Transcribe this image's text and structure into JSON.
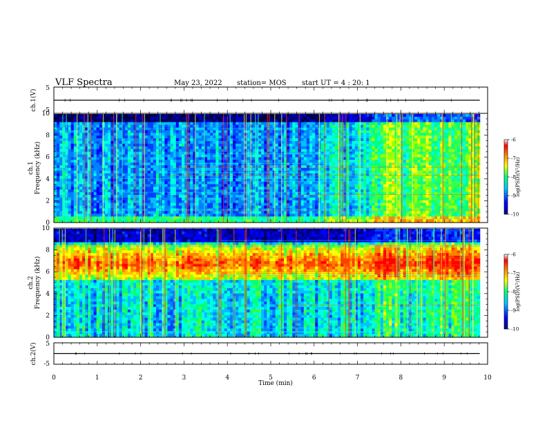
{
  "header": {
    "title": "VLF Spectra",
    "date": "May 23, 2022",
    "station": "station= MOS",
    "start": "start  UT  =   4 : 20: 1"
  },
  "colors": {
    "background": "#ffffff",
    "axis": "#000000",
    "trace": "#000000",
    "colormap": [
      "#000080",
      "#0000ff",
      "#00c8ff",
      "#00ff80",
      "#ffff00",
      "#ff8000",
      "#ff0000",
      "#ffffff"
    ]
  },
  "chart_data": [
    {
      "type": "line",
      "panel": "ch1-waveform",
      "ylabel": "ch.1(V)",
      "ylim": [
        -5,
        5
      ],
      "yticks": [
        "5",
        "-5"
      ],
      "xlim": [
        0,
        10
      ],
      "series": [
        {
          "x": [
            0,
            9.82
          ],
          "y": [
            0,
            0
          ]
        }
      ]
    },
    {
      "type": "heatmap",
      "panel": "ch1-spectrogram",
      "ylabel": "ch.1\nFrequency (kHz)",
      "ylim": [
        0,
        10
      ],
      "yticks": [
        "0",
        "2",
        "4",
        "6",
        "8",
        "10"
      ],
      "xlim": [
        0,
        10
      ],
      "data_x_extent": [
        0,
        9.82
      ],
      "colorbar": {
        "label": "log(PSD)(V²/Hz)",
        "range": [
          -10,
          -6
        ],
        "ticks": [
          "-6",
          "-7",
          "-8",
          "-9",
          "-10"
        ]
      }
    },
    {
      "type": "heatmap",
      "panel": "ch2-spectrogram",
      "ylabel": "ch.2\nFrequency (kHz)",
      "ylim": [
        0,
        10
      ],
      "yticks": [
        "0",
        "2",
        "4",
        "6",
        "8",
        "10"
      ],
      "xlim": [
        0,
        10
      ],
      "data_x_extent": [
        0,
        9.82
      ],
      "colorbar": {
        "label": "log(PSD)(V²/Hz)",
        "range": [
          -10,
          -6
        ],
        "ticks": [
          "-6",
          "-7",
          "-8",
          "-9",
          "-10"
        ]
      }
    },
    {
      "type": "line",
      "panel": "ch2-waveform",
      "ylabel": "ch.2(V)",
      "ylim": [
        -5,
        5
      ],
      "yticks": [
        "5",
        "-5"
      ],
      "xlim": [
        0,
        10
      ],
      "xlabel": "Time  (min)",
      "xticks": [
        "0",
        "1",
        "2",
        "3",
        "4",
        "5",
        "6",
        "7",
        "8",
        "9",
        "10"
      ],
      "series": [
        {
          "x": [
            0,
            9.82
          ],
          "y": [
            0,
            0
          ]
        }
      ]
    }
  ]
}
